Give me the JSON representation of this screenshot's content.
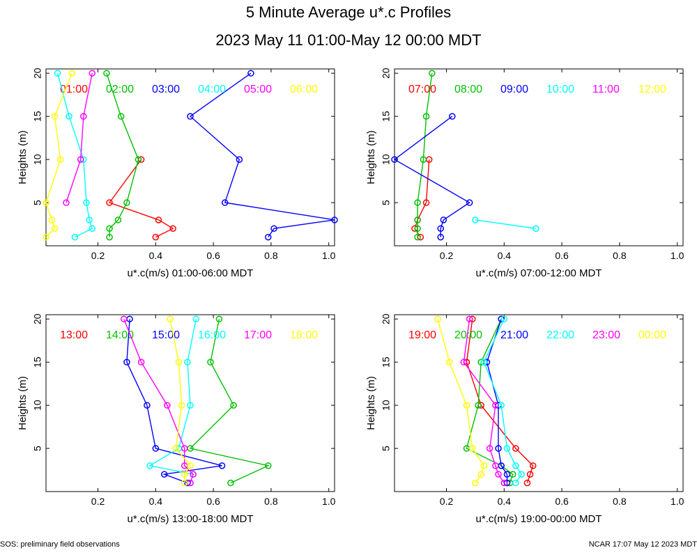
{
  "title": "5 Minute Average u*.c Profiles",
  "subtitle": "2023 May 11 01:00-May 12 00:00 MDT",
  "footer_left": "SOS: preliminary field observations",
  "footer_right": "NCAR 17:07 May 12 2023 MDT",
  "chart_data": [
    {
      "type": "line",
      "xlabel": "u*.c(m/s) 01:00-06:00 MDT",
      "ylabel": "Heights (m)",
      "xlim": [
        0.02,
        1.02
      ],
      "ylim": [
        0,
        20.5
      ],
      "xticks": [
        0.2,
        0.4,
        0.6,
        0.8,
        1.0
      ],
      "xtick_labels": [
        "0.2",
        "0.4",
        "0.6",
        "0.8",
        "1.0"
      ],
      "yticks": [
        5,
        10,
        15,
        20
      ],
      "ytick_labels": [
        "5",
        "10",
        "15",
        "20"
      ],
      "series": [
        {
          "name": "01:00",
          "color": "#ff0000",
          "x": [
            0.4,
            0.46,
            0.41,
            0.24,
            0.35
          ],
          "y": [
            1,
            2,
            3,
            5,
            10
          ]
        },
        {
          "name": "02:00",
          "color": "#00c000",
          "x": [
            0.24,
            0.24,
            0.27,
            0.3,
            0.34,
            0.28,
            0.23
          ],
          "y": [
            1,
            2,
            3,
            5,
            10,
            15,
            20
          ]
        },
        {
          "name": "03:00",
          "color": "#0000ff",
          "x": [
            0.79,
            0.81,
            1.02,
            0.64,
            0.69,
            0.52,
            0.73
          ],
          "y": [
            1,
            2,
            3,
            5,
            10,
            15,
            20
          ]
        },
        {
          "name": "04:00",
          "color": "#00ffff",
          "x": [
            0.12,
            0.18,
            0.17,
            0.16,
            0.15,
            0.1,
            0.06
          ],
          "y": [
            1,
            2,
            3,
            5,
            10,
            15,
            20
          ]
        },
        {
          "name": "05:00",
          "color": "#ff00ff",
          "x": [
            0.09,
            0.14,
            0.15,
            0.18
          ],
          "y": [
            5,
            10,
            15,
            20
          ]
        },
        {
          "name": "06:00",
          "color": "#ffff00",
          "x": [
            0.02,
            0.05,
            0.04,
            0.02,
            0.07,
            0.05,
            0.11
          ],
          "y": [
            1,
            2,
            3,
            5,
            10,
            15,
            20
          ]
        }
      ]
    },
    {
      "type": "line",
      "xlabel": "u*.c(m/s) 07:00-12:00 MDT",
      "ylabel": "Heights (m)",
      "xlim": [
        0.02,
        1.02
      ],
      "ylim": [
        0,
        20.5
      ],
      "xticks": [
        0.2,
        0.4,
        0.6,
        0.8,
        1.0
      ],
      "xtick_labels": [
        "0.2",
        "0.4",
        "0.6",
        "0.8",
        "1.0"
      ],
      "yticks": [
        5,
        10,
        15,
        20
      ],
      "ytick_labels": [
        "5",
        "10",
        "15",
        "20"
      ],
      "series": [
        {
          "name": "07:00",
          "color": "#ff0000",
          "x": [
            0.11,
            0.09,
            0.1,
            0.13,
            0.14
          ],
          "y": [
            1,
            2,
            3,
            5,
            10
          ]
        },
        {
          "name": "08:00",
          "color": "#00c000",
          "x": [
            0.1,
            0.1,
            0.1,
            0.1,
            0.12,
            0.13,
            0.15
          ],
          "y": [
            1,
            2,
            3,
            5,
            10,
            15,
            20
          ]
        },
        {
          "name": "09:00",
          "color": "#0000ff",
          "x": [
            0.18,
            0.18,
            0.19,
            0.28,
            0.02,
            0.22
          ],
          "y": [
            1,
            2,
            3,
            5,
            10,
            15
          ]
        },
        {
          "name": "10:00",
          "color": "#00ffff",
          "x": [
            0.51,
            0.3
          ],
          "y": [
            2,
            3
          ]
        },
        {
          "name": "11:00",
          "color": "#ff00ff",
          "x": [],
          "y": []
        },
        {
          "name": "12:00",
          "color": "#ffff00",
          "x": [],
          "y": []
        }
      ]
    },
    {
      "type": "line",
      "xlabel": "u*.c(m/s) 13:00-18:00 MDT",
      "ylabel": "Heights (m)",
      "xlim": [
        0.02,
        1.02
      ],
      "ylim": [
        0,
        20.5
      ],
      "xticks": [
        0.2,
        0.4,
        0.6,
        0.8,
        1.0
      ],
      "xtick_labels": [
        "0.2",
        "0.4",
        "0.6",
        "0.8",
        "1.0"
      ],
      "yticks": [
        5,
        10,
        15,
        20
      ],
      "ytick_labels": [
        "5",
        "10",
        "15",
        "20"
      ],
      "series": [
        {
          "name": "13:00",
          "color": "#ff0000",
          "x": [],
          "y": []
        },
        {
          "name": "14:00",
          "color": "#00c000",
          "x": [
            0.66,
            0.79,
            0.52,
            0.67,
            0.59,
            0.62
          ],
          "y": [
            1,
            3,
            5,
            10,
            15,
            20
          ]
        },
        {
          "name": "15:00",
          "color": "#0000ff",
          "x": [
            0.51,
            0.43,
            0.63,
            0.4,
            0.37,
            0.3,
            0.31
          ],
          "y": [
            1,
            2,
            3,
            5,
            10,
            15,
            20
          ]
        },
        {
          "name": "16:00",
          "color": "#00ffff",
          "x": [
            0.52,
            0.53,
            0.38,
            0.48,
            0.52,
            0.51,
            0.54
          ],
          "y": [
            1,
            2,
            3,
            5,
            10,
            15,
            20
          ]
        },
        {
          "name": "17:00",
          "color": "#ff00ff",
          "x": [
            0.52,
            0.53,
            0.5,
            0.5,
            0.44,
            0.35,
            0.29
          ],
          "y": [
            1,
            2,
            3,
            5,
            10,
            15,
            20
          ]
        },
        {
          "name": "18:00",
          "color": "#ffff00",
          "x": [
            0.5,
            0.5,
            0.52,
            0.47,
            0.49,
            0.48,
            0.45
          ],
          "y": [
            1,
            2,
            3,
            5,
            10,
            15,
            20
          ]
        }
      ]
    },
    {
      "type": "line",
      "xlabel": "u*.c(m/s) 19:00-00:00 MDT",
      "ylabel": "Heights (m)",
      "xlim": [
        0.02,
        1.02
      ],
      "ylim": [
        0,
        20.5
      ],
      "xticks": [
        0.2,
        0.4,
        0.6,
        0.8,
        1.0
      ],
      "xtick_labels": [
        "0.2",
        "0.4",
        "0.6",
        "0.8",
        "1.0"
      ],
      "yticks": [
        5,
        10,
        15,
        20
      ],
      "ytick_labels": [
        "5",
        "10",
        "15",
        "20"
      ],
      "series": [
        {
          "name": "19:00",
          "color": "#ff0000",
          "x": [
            0.48,
            0.49,
            0.5,
            0.44,
            0.32,
            0.27,
            0.29
          ],
          "y": [
            1,
            2,
            3,
            5,
            10,
            15,
            20
          ]
        },
        {
          "name": "20:00",
          "color": "#00c000",
          "x": [
            0.42,
            0.43,
            0.39,
            0.27,
            0.31,
            0.32,
            0.39
          ],
          "y": [
            1,
            2,
            3,
            5,
            10,
            15,
            20
          ]
        },
        {
          "name": "21:00",
          "color": "#0000ff",
          "x": [
            0.41,
            0.41,
            0.39,
            0.38,
            0.38,
            0.34,
            0.39
          ],
          "y": [
            1,
            2,
            3,
            5,
            10,
            15,
            20
          ]
        },
        {
          "name": "22:00",
          "color": "#00ffff",
          "x": [
            0.44,
            0.46,
            0.44,
            0.41,
            0.39,
            0.33,
            0.4
          ],
          "y": [
            1,
            2,
            3,
            5,
            10,
            15,
            20
          ]
        },
        {
          "name": "23:00",
          "color": "#ff00ff",
          "x": [
            0.4,
            0.38,
            0.37,
            0.35,
            0.37,
            0.26,
            0.28
          ],
          "y": [
            1,
            2,
            3,
            5,
            10,
            15,
            20
          ]
        },
        {
          "name": "00:00",
          "color": "#ffff00",
          "x": [
            0.3,
            0.32,
            0.33,
            0.29,
            0.27,
            0.21,
            0.17
          ],
          "y": [
            1,
            2,
            3,
            5,
            10,
            15,
            20
          ]
        }
      ]
    }
  ]
}
